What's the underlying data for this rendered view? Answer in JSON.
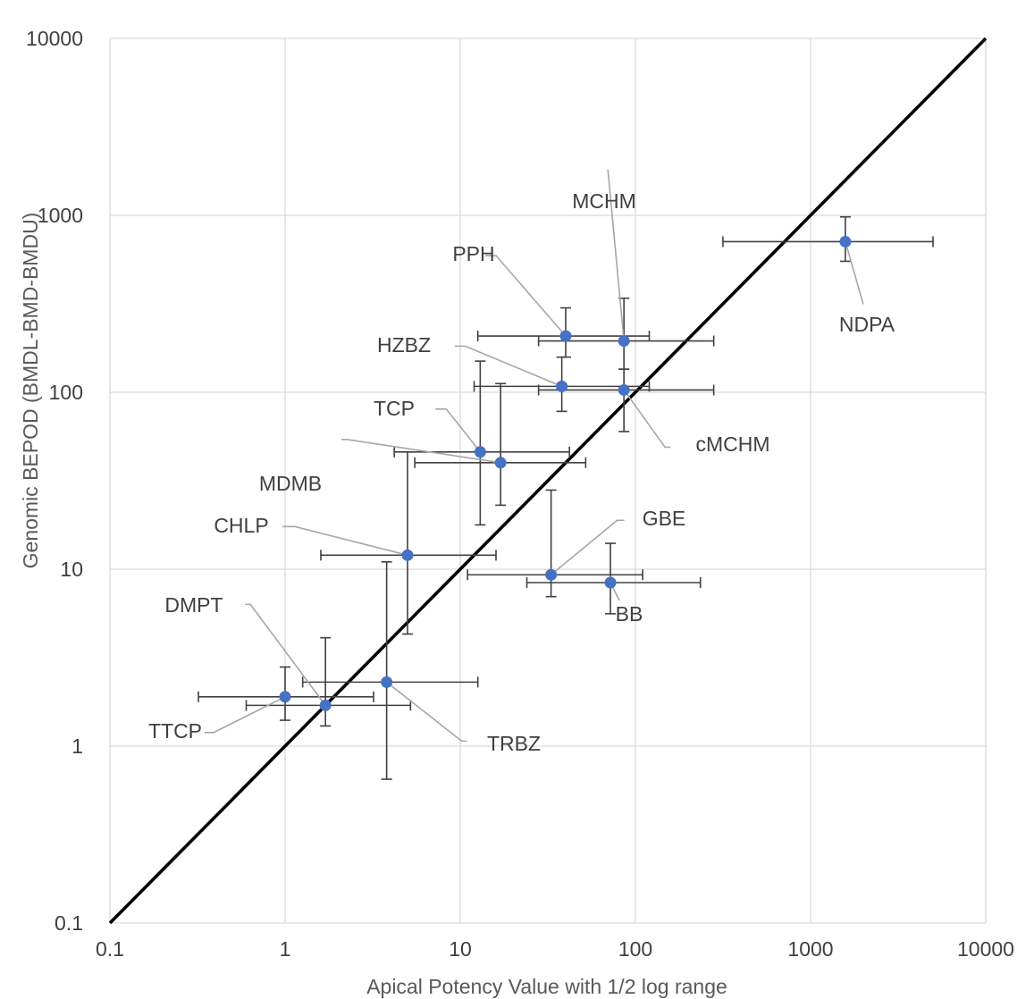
{
  "chart_data": {
    "type": "scatter",
    "x_scale": "log",
    "y_scale": "log",
    "xlabel": "Apical Potency Value with 1/2 log range",
    "ylabel": "Genomic BEPOD (BMDL-BMD-BMDU)",
    "xlim": [
      0.1,
      10000
    ],
    "ylim": [
      0.1,
      10000
    ],
    "x_tick_labels": [
      "0.1",
      "1",
      "10",
      "100",
      "1000",
      "10000"
    ],
    "y_tick_labels": [
      "0.1",
      "1",
      "10",
      "100",
      "1000",
      "10000"
    ],
    "grid": true,
    "legend": "none",
    "reference_line": {
      "x": [
        0.1,
        10000
      ],
      "y": [
        0.1,
        10000
      ],
      "color": "#000000"
    },
    "marker_color": "#4472C4",
    "error_bar_color": "#404040",
    "leader_line_color": "#A6A6A6",
    "points": [
      {
        "label": "NDPA",
        "x": 1580,
        "y": 710,
        "x_err": [
          316,
          5000
        ],
        "y_err": [
          550,
          980
        ]
      },
      {
        "label": "MCHM",
        "x": 86,
        "y": 195,
        "x_err": [
          28,
          280
        ],
        "y_err": [
          135,
          340
        ]
      },
      {
        "label": "PPH",
        "x": 40,
        "y": 208,
        "x_err": [
          12.6,
          120
        ],
        "y_err": [
          158,
          300
        ]
      },
      {
        "label": "HZBZ",
        "x": 38,
        "y": 108,
        "x_err": [
          12,
          120
        ],
        "y_err": [
          78,
          158
        ]
      },
      {
        "label": "cMCHM",
        "x": 86,
        "y": 103,
        "x_err": [
          28,
          280
        ],
        "y_err": [
          60,
          135
        ]
      },
      {
        "label": "TCP",
        "x": 13,
        "y": 46,
        "x_err": [
          4.2,
          42
        ],
        "y_err": [
          17.8,
          150
        ]
      },
      {
        "label": "MDMB",
        "x": 17,
        "y": 40,
        "x_err": [
          5.5,
          52
        ],
        "y_err": [
          23,
          112
        ]
      },
      {
        "label": "CHLP",
        "x": 5,
        "y": 12,
        "x_err": [
          1.6,
          16
        ],
        "y_err": [
          4.3,
          46
        ]
      },
      {
        "label": "GBE",
        "x": 33,
        "y": 9.3,
        "x_err": [
          11,
          110
        ],
        "y_err": [
          7,
          28
        ]
      },
      {
        "label": "BB",
        "x": 72,
        "y": 8.4,
        "x_err": [
          24,
          235
        ],
        "y_err": [
          5.6,
          14
        ]
      },
      {
        "label": "DMPT",
        "x": 1.7,
        "y": 1.7,
        "x_err": [
          0.6,
          5.2
        ],
        "y_err": [
          1.3,
          4.1
        ]
      },
      {
        "label": "TTCP",
        "x": 1,
        "y": 1.9,
        "x_err": [
          0.32,
          3.2
        ],
        "y_err": [
          1.4,
          2.8
        ]
      },
      {
        "label": "TRBZ",
        "x": 3.8,
        "y": 2.3,
        "x_err": [
          1.26,
          12.6
        ],
        "y_err": [
          0.65,
          11
        ]
      }
    ]
  }
}
